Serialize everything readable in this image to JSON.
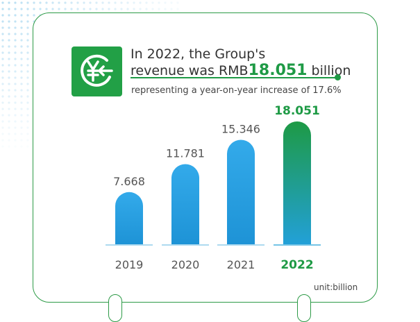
{
  "headline": {
    "line1": "In 2022, the Group's",
    "line2_prefix": "revenue was RMB",
    "value": "18.051",
    "line2_suffix": " billion",
    "subline": "representing a year-on-year increase of 17.6%"
  },
  "unit_label": "unit:billion",
  "colors": {
    "brand_green": "#1e9a45",
    "bar_blue_top": "#33aaea",
    "bar_blue_bottom": "#1e93d6",
    "bar_green_top": "#1e9a45",
    "bar_green_bottom": "#22a0d8",
    "label_gray": "#555555"
  },
  "icon": "yuan-coin-icon",
  "chart_data": {
    "type": "bar",
    "title": "",
    "categories": [
      "2019",
      "2020",
      "2021",
      "2022"
    ],
    "values": [
      7.668,
      11.781,
      15.346,
      18.051
    ],
    "value_labels": [
      "7.668",
      "11.781",
      "15.346",
      "18.051"
    ],
    "highlight": "2022",
    "xlabel": "",
    "ylabel": "",
    "ylim": [
      0,
      19
    ],
    "unit": "billion"
  }
}
